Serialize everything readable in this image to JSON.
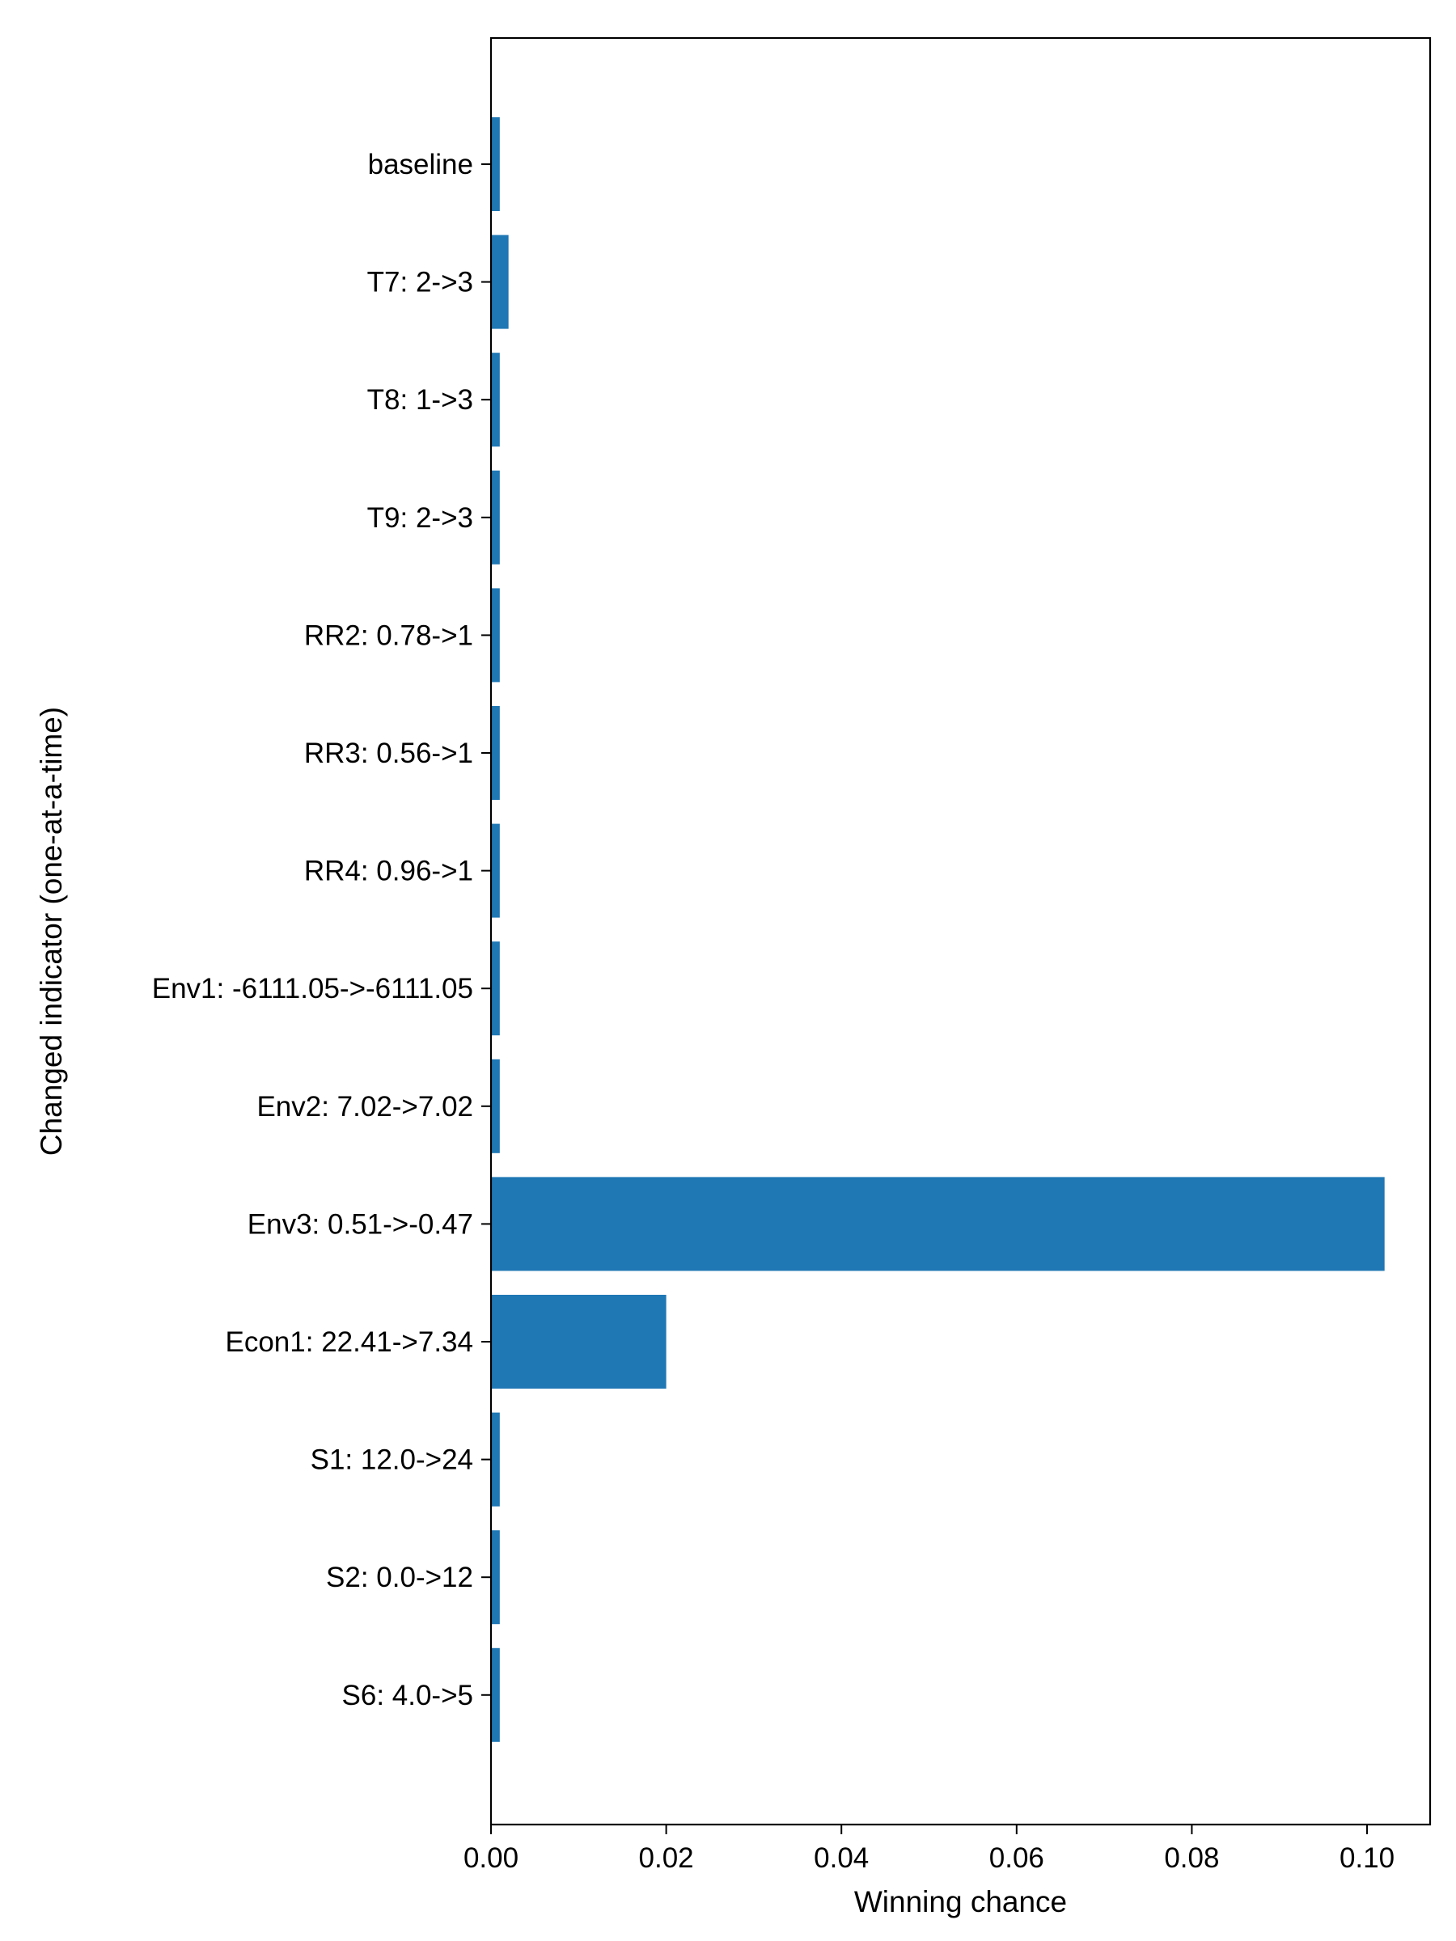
{
  "chart_data": {
    "type": "bar",
    "orientation": "horizontal",
    "categories": [
      "baseline",
      "T7: 2->3",
      "T8: 1->3",
      "T9: 2->3",
      "RR2: 0.78->1",
      "RR3: 0.56->1",
      "RR4: 0.96->1",
      "Env1: -6111.05->-6111.05",
      "Env2: 7.02->7.02",
      "Env3: 0.51->-0.47",
      "Econ1: 22.41->7.34",
      "S1: 12.0->24",
      "S2: 0.0->12",
      "S6: 4.0->5"
    ],
    "values": [
      0.001,
      0.002,
      0.001,
      0.001,
      0.001,
      0.001,
      0.001,
      0.001,
      0.001,
      0.102,
      0.02,
      0.001,
      0.001,
      0.001
    ],
    "title": "",
    "xlabel": "Winning chance",
    "ylabel": "Changed indicator (one-at-a-time)",
    "xlim": [
      0,
      0.1072
    ],
    "xticks": [
      "0.00",
      "0.02",
      "0.04",
      "0.06",
      "0.08",
      "0.10"
    ],
    "xtick_values": [
      0,
      0.02,
      0.04,
      0.06,
      0.08,
      0.1
    ],
    "grid": false,
    "legend": "none",
    "bar_color": "#1f77b4"
  }
}
